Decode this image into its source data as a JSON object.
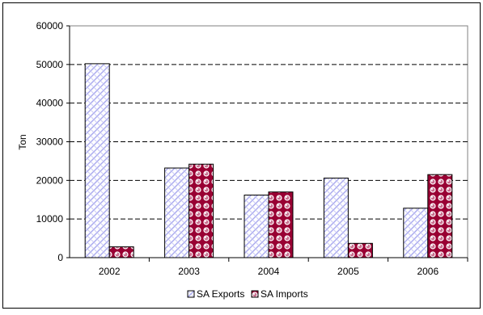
{
  "chart_data": {
    "type": "bar",
    "categories": [
      "2002",
      "2003",
      "2004",
      "2005",
      "2006"
    ],
    "series": [
      {
        "name": "SA Exports",
        "values": [
          50200,
          23200,
          16200,
          20600,
          12800
        ],
        "color": "#ccccff",
        "pattern": "crosshatch"
      },
      {
        "name": "SA Imports",
        "values": [
          2800,
          24200,
          17000,
          3700,
          21500
        ],
        "color": "#990033",
        "pattern": "bubbles"
      }
    ],
    "title": "",
    "xlabel": "",
    "ylabel": "Ton",
    "ylim": [
      0,
      60000
    ],
    "yticks": [
      0,
      10000,
      20000,
      30000,
      40000,
      50000,
      60000
    ],
    "grid": "horizontal dashed",
    "legend_position": "bottom"
  }
}
